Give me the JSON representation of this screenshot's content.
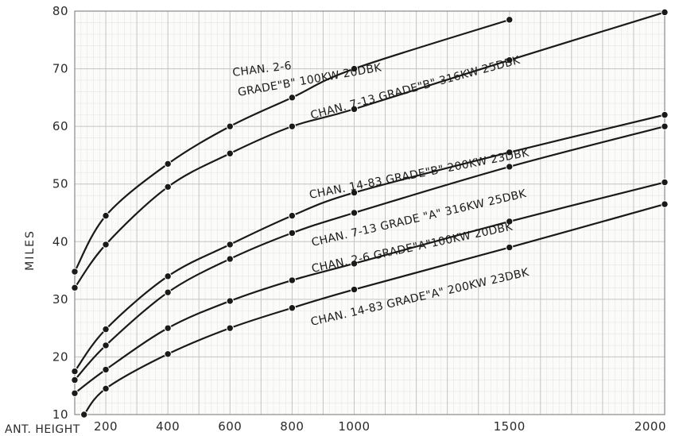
{
  "chart_data": {
    "type": "line",
    "title": "",
    "xlabel": "ANT. HEIGHT",
    "ylabel": "MILES",
    "xlim": [
      100,
      2000
    ],
    "ylim": [
      10,
      80
    ],
    "x_ticks": [
      {
        "value": 200,
        "label": "200"
      },
      {
        "value": 400,
        "label": "400"
      },
      {
        "value": 600,
        "label": "600"
      },
      {
        "value": 800,
        "label": "800"
      },
      {
        "value": 1000,
        "label": "1000"
      },
      {
        "value": 1500,
        "label": "1500"
      },
      {
        "value": 2000,
        "label": "2000"
      }
    ],
    "y_ticks": [
      10,
      20,
      30,
      40,
      50,
      60,
      70,
      80
    ],
    "grid": true,
    "series": [
      {
        "name": "CHAN. 2-6 GRADE\"B\" 100KW 20DBK",
        "label_lines": [
          "CHAN. 2-6",
          "GRADE\"B\" 100KW 20DBK"
        ],
        "points": [
          [
            100,
            34.8
          ],
          [
            200,
            44.5
          ],
          [
            400,
            53.5
          ],
          [
            600,
            60
          ],
          [
            800,
            65
          ],
          [
            1000,
            70
          ],
          [
            1500,
            78.5
          ]
        ]
      },
      {
        "name": "CHAN. 7-13 GRADE\"B\" 316KW 25DBK",
        "label_lines": [
          "CHAN. 7-13 GRADE\"B\" 316KW 25DBK"
        ],
        "points": [
          [
            100,
            32
          ],
          [
            200,
            39.5
          ],
          [
            400,
            49.5
          ],
          [
            600,
            55.3
          ],
          [
            800,
            60
          ],
          [
            1000,
            63
          ],
          [
            1500,
            71.5
          ],
          [
            2000,
            79.8
          ]
        ]
      },
      {
        "name": "CHAN. 14-83 GRADE\"B\" 200KW 23DBK",
        "label_lines": [
          "CHAN. 14-83 GRADE\"B\" 200KW 23DBK"
        ],
        "points": [
          [
            100,
            17.5
          ],
          [
            200,
            24.8
          ],
          [
            400,
            34
          ],
          [
            600,
            39.5
          ],
          [
            800,
            44.5
          ],
          [
            1000,
            48.5
          ],
          [
            1500,
            55.5
          ],
          [
            2000,
            62
          ]
        ]
      },
      {
        "name": "CHAN. 7-13 GRADE \"A\" 316KW 25DBK",
        "label_lines": [
          "CHAN. 7-13 GRADE \"A\" 316KW 25DBK"
        ],
        "points": [
          [
            100,
            16
          ],
          [
            200,
            22
          ],
          [
            400,
            31.2
          ],
          [
            600,
            37
          ],
          [
            800,
            41.5
          ],
          [
            1000,
            45
          ],
          [
            1500,
            53
          ],
          [
            2000,
            60
          ]
        ]
      },
      {
        "name": "CHAN. 2-6 GRADE\"A\"100KW 20DBK",
        "label_lines": [
          "CHAN. 2-6 GRADE\"A\"100KW 20DBK"
        ],
        "points": [
          [
            100,
            13.7
          ],
          [
            200,
            17.8
          ],
          [
            400,
            25
          ],
          [
            600,
            29.7
          ],
          [
            800,
            33.3
          ],
          [
            1000,
            36.2
          ],
          [
            1500,
            43.5
          ],
          [
            2000,
            50.3
          ]
        ]
      },
      {
        "name": "CHAN. 14-83 GRADE\"A\" 200KW 23DBK",
        "label_lines": [
          "CHAN. 14-83 GRADE\"A\" 200KW 23DBK"
        ],
        "points": [
          [
            130,
            10
          ],
          [
            200,
            14.5
          ],
          [
            400,
            20.5
          ],
          [
            600,
            25
          ],
          [
            800,
            28.5
          ],
          [
            1000,
            31.7
          ],
          [
            1500,
            39
          ],
          [
            2000,
            46.5
          ]
        ]
      }
    ]
  }
}
